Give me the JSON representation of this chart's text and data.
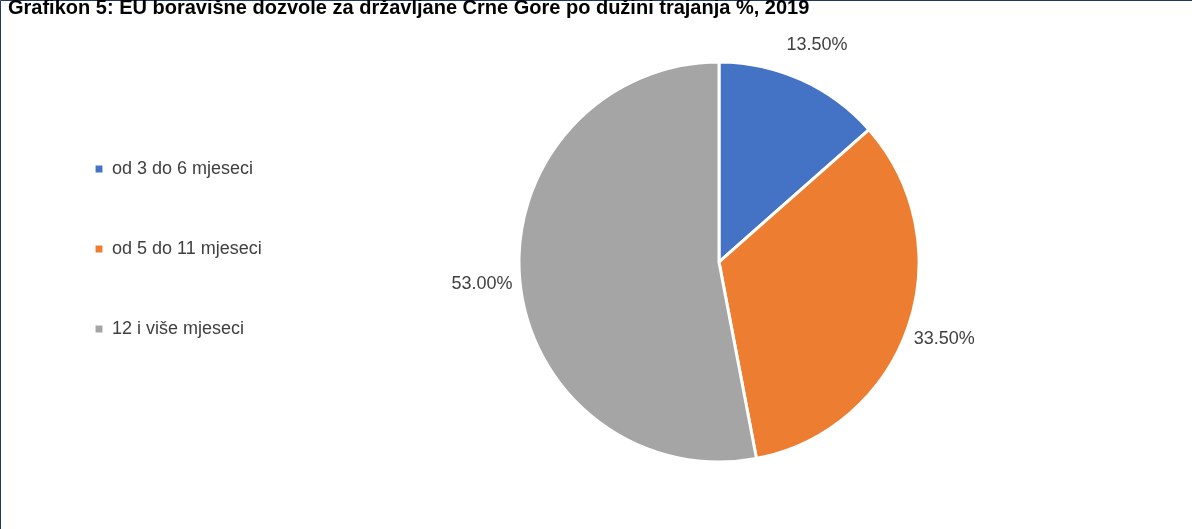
{
  "chart_data": {
    "type": "pie",
    "title": "Grafikon 5: EU boravišne dozvole za državljane Crne Gore po dužini trajanja %, 2019",
    "categories": [
      "od 3 do 6 mjeseci",
      "od 5 do 11 mjeseci",
      "12 i više mjeseci"
    ],
    "values": [
      13.5,
      33.5,
      53.0
    ],
    "colors": [
      "#4472c4",
      "#ed7d31",
      "#a5a5a5"
    ],
    "value_labels": [
      "13.50%",
      "33.50%",
      "53.00%"
    ],
    "legend": "left"
  }
}
